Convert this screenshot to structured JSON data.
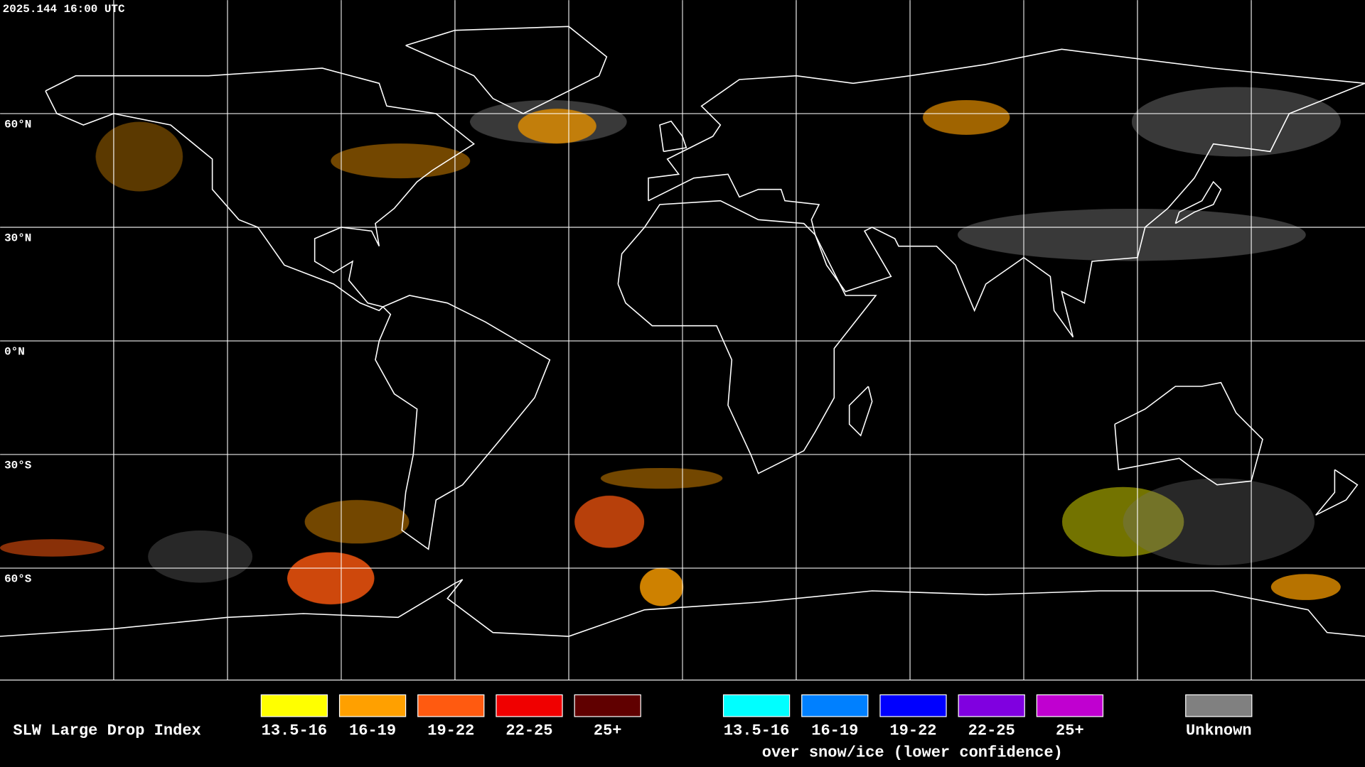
{
  "header": {
    "timestamp": "2025.144 16:00 UTC"
  },
  "map": {
    "lat_labels": [
      "60°N",
      "30°N",
      "0°N",
      "30°S",
      "60°S"
    ]
  },
  "legend": {
    "title": "SLW Large Drop Index",
    "primary": [
      {
        "label": "13.5-16",
        "color": "#ffff00"
      },
      {
        "label": "16-19",
        "color": "#ffa000"
      },
      {
        "label": "19-22",
        "color": "#ff5a10"
      },
      {
        "label": "22-25",
        "color": "#f00000"
      },
      {
        "label": "25+",
        "color": "#600000"
      }
    ],
    "snow_ice": [
      {
        "label": "13.5-16",
        "color": "#00ffff"
      },
      {
        "label": "16-19",
        "color": "#0080ff"
      },
      {
        "label": "19-22",
        "color": "#0000ff"
      },
      {
        "label": "22-25",
        "color": "#8000e0"
      },
      {
        "label": "25+",
        "color": "#c000d0"
      }
    ],
    "snow_ice_caption": "over snow/ice (lower confidence)",
    "unknown": {
      "label": "Unknown",
      "color": "#808080"
    }
  }
}
